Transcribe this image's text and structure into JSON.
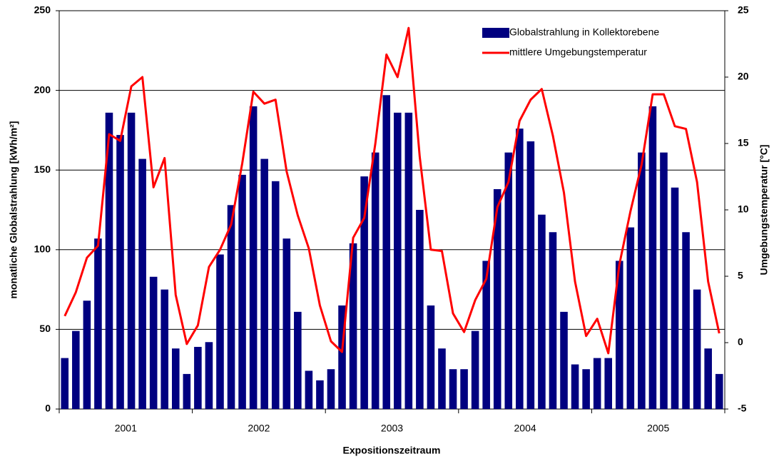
{
  "chart_data": {
    "type": "bar",
    "x_label": "Expositionszeitraum",
    "y_label": "monatliche Globalstrahlung [kWh/m²]",
    "y2_label": "Umgebungstemperatur [°C]",
    "categories": [
      null,
      null,
      null,
      null,
      null,
      null,
      null,
      null,
      null,
      null,
      null,
      null,
      null,
      null,
      null,
      null,
      null,
      null,
      null,
      null,
      null,
      null,
      null,
      null,
      null,
      null,
      null,
      null,
      null,
      null,
      null,
      null,
      null,
      null,
      null,
      null,
      null,
      null,
      null,
      null,
      null,
      null,
      null,
      null,
      null,
      null,
      null,
      null,
      null,
      null,
      null,
      null,
      null,
      null,
      null,
      null,
      null,
      null,
      null,
      null
    ],
    "x_groups": [
      "2001",
      "2002",
      "2003",
      "2004",
      "2005"
    ],
    "series": [
      {
        "name": "Globalstrahlung in Kollektorebene",
        "type": "bar",
        "color": "#000080",
        "axis": "y",
        "values": [
          32,
          49,
          68,
          107,
          186,
          172,
          186,
          157,
          83,
          75,
          38,
          22,
          39,
          42,
          97,
          128,
          147,
          190,
          157,
          143,
          107,
          61,
          24,
          18,
          25,
          65,
          104,
          146,
          161,
          197,
          186,
          186,
          125,
          65,
          38,
          25,
          25,
          49,
          93,
          138,
          161,
          176,
          168,
          122,
          111,
          61,
          28,
          25,
          32,
          32,
          93,
          114,
          161,
          190,
          161,
          139,
          111,
          75,
          38,
          22
        ]
      },
      {
        "name": "mittlere Umgebungstemperatur",
        "type": "line",
        "color": "#ff0000",
        "axis": "y2",
        "values": [
          2.0,
          3.8,
          6.4,
          7.3,
          15.7,
          15.2,
          19.3,
          20.0,
          11.7,
          13.9,
          3.6,
          -0.1,
          1.3,
          5.7,
          7.0,
          8.9,
          13.5,
          18.9,
          18.0,
          18.3,
          12.9,
          9.6,
          7.1,
          2.8,
          0.1,
          -0.7,
          7.9,
          9.4,
          15.0,
          21.7,
          20.0,
          23.7,
          14.0,
          7.0,
          6.9,
          2.2,
          0.8,
          3.2,
          4.8,
          10.2,
          12.1,
          16.7,
          18.3,
          19.1,
          15.6,
          11.3,
          4.6,
          0.5,
          1.8,
          -0.8,
          5.9,
          9.9,
          13.4,
          18.7,
          18.7,
          16.3,
          16.1,
          12.1,
          4.6,
          0.7
        ]
      }
    ],
    "ylim": [
      0,
      250
    ],
    "yticks": [
      0,
      50,
      100,
      150,
      200,
      250
    ],
    "y2lim": [
      -5,
      25
    ],
    "y2ticks": [
      -5,
      0,
      5,
      10,
      15,
      20,
      25
    ],
    "grid": true,
    "legend": "upper right"
  }
}
